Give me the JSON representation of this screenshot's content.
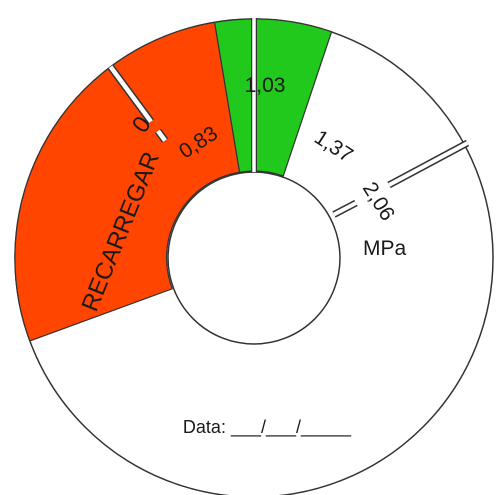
{
  "gauge": {
    "colors": {
      "red": "#ff4500",
      "green": "#21c91c",
      "outline": "#333333",
      "background": "#ffffff"
    },
    "labels": {
      "recharge": "RECARREGAR",
      "zero": "0",
      "v083": "0,83",
      "v103": "1,03",
      "v137": "1,37",
      "v206": "2,06",
      "unit": "MPa"
    },
    "date_line": "Data: ___/___/_____"
  }
}
